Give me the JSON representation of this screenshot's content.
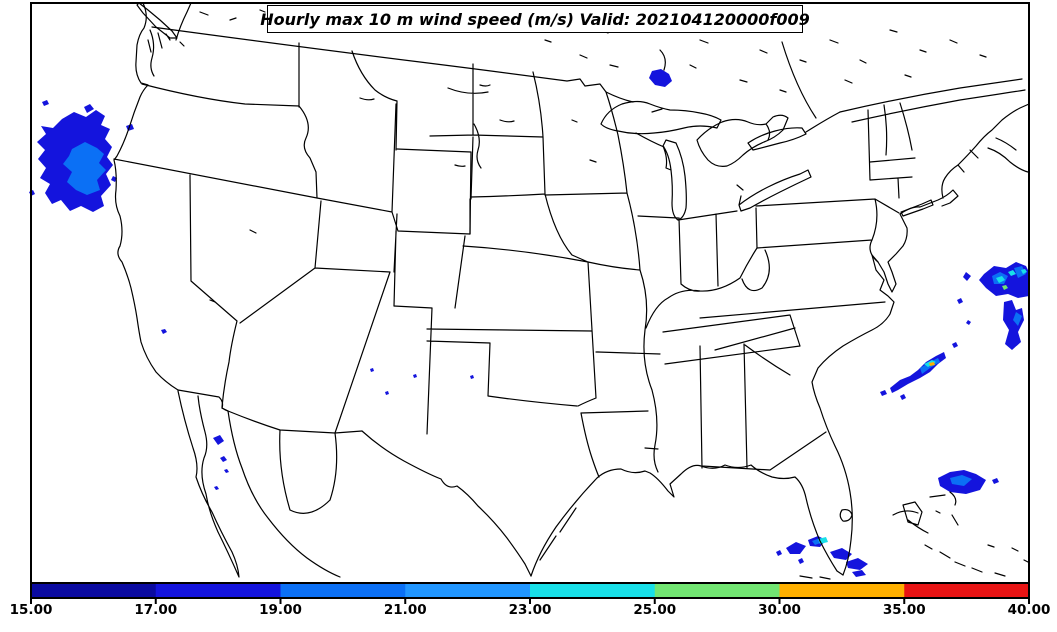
{
  "chart_data": {
    "type": "heatmap",
    "title": "Hourly max 10 m wind speed (m/s) Valid: 202104120000f009",
    "variable": "Hourly max 10 m wind speed",
    "units": "m/s",
    "valid_time": "202104120000f009",
    "map_extent": "Contiguous United States with portions of Canada, Mexico, Cuba and the Bahamas",
    "background_color": "#ffffff",
    "line_color": "#000000",
    "colorbar": {
      "orientation": "horizontal",
      "position": "bottom",
      "levels": [
        15,
        17,
        19,
        21,
        23,
        25,
        30,
        35,
        40
      ],
      "tick_labels": [
        "15.00",
        "17.00",
        "19.00",
        "21.00",
        "23.00",
        "25.00",
        "30.00",
        "35.00",
        "40.00"
      ],
      "colors": [
        "#0a0aa0",
        "#1414dd",
        "#0b70f5",
        "#2196ff",
        "#18dfe8",
        "#72e572",
        "#ffb000",
        "#e81414"
      ]
    },
    "regions": [
      {
        "area": "Pacific offshore southern Oregon / northern California",
        "speed_range_ms": "17-21"
      },
      {
        "area": "Lake Superior near Thunder Bay",
        "speed_range_ms": "17-19"
      },
      {
        "area": "Atlantic offshore New England / Gulf of Maine",
        "speed_range_ms": "17-30"
      },
      {
        "area": "Atlantic mid-coast streak off Carolinas",
        "speed_range_ms": "17-35"
      },
      {
        "area": "Atlantic east of Florida",
        "speed_range_ms": "17-21"
      },
      {
        "area": "Southwest Florida coast and Keys",
        "speed_range_ms": "17-25"
      },
      {
        "area": "Gulf of California",
        "speed_range_ms": "17-19"
      },
      {
        "area": "Scattered interior specks (NM / TX plains)",
        "speed_range_ms": "17-19"
      }
    ]
  }
}
